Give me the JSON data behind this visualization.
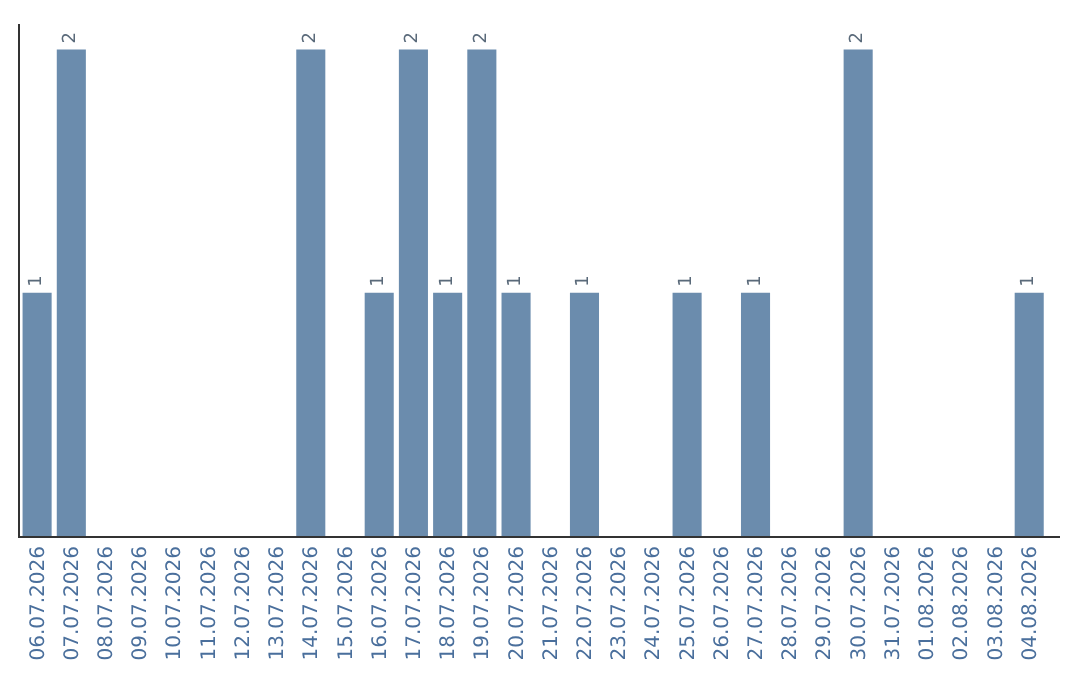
{
  "chart_data": {
    "type": "bar",
    "categories": [
      "06.07.2026",
      "07.07.2026",
      "08.07.2026",
      "09.07.2026",
      "10.07.2026",
      "11.07.2026",
      "12.07.2026",
      "13.07.2026",
      "14.07.2026",
      "15.07.2026",
      "16.07.2026",
      "17.07.2026",
      "18.07.2026",
      "19.07.2026",
      "20.07.2026",
      "21.07.2026",
      "22.07.2026",
      "23.07.2026",
      "24.07.2026",
      "25.07.2026",
      "26.07.2026",
      "27.07.2026",
      "28.07.2026",
      "29.07.2026",
      "30.07.2026",
      "31.07.2026",
      "01.08.2026",
      "02.08.2026",
      "03.08.2026",
      "04.08.2026"
    ],
    "values": [
      1,
      2,
      0,
      0,
      0,
      0,
      0,
      0,
      2,
      0,
      1,
      2,
      1,
      2,
      1,
      0,
      1,
      0,
      0,
      1,
      0,
      1,
      0,
      0,
      2,
      0,
      0,
      0,
      0,
      1
    ],
    "value_labels": [
      "1",
      "2",
      null,
      null,
      null,
      null,
      null,
      null,
      "2",
      null,
      "1",
      "2",
      "1",
      "2",
      "1",
      null,
      "1",
      null,
      null,
      "1",
      null,
      "1",
      null,
      null,
      "2",
      null,
      null,
      null,
      null,
      "1"
    ],
    "color": "#6b8cad",
    "tick_labels": "x"
  }
}
